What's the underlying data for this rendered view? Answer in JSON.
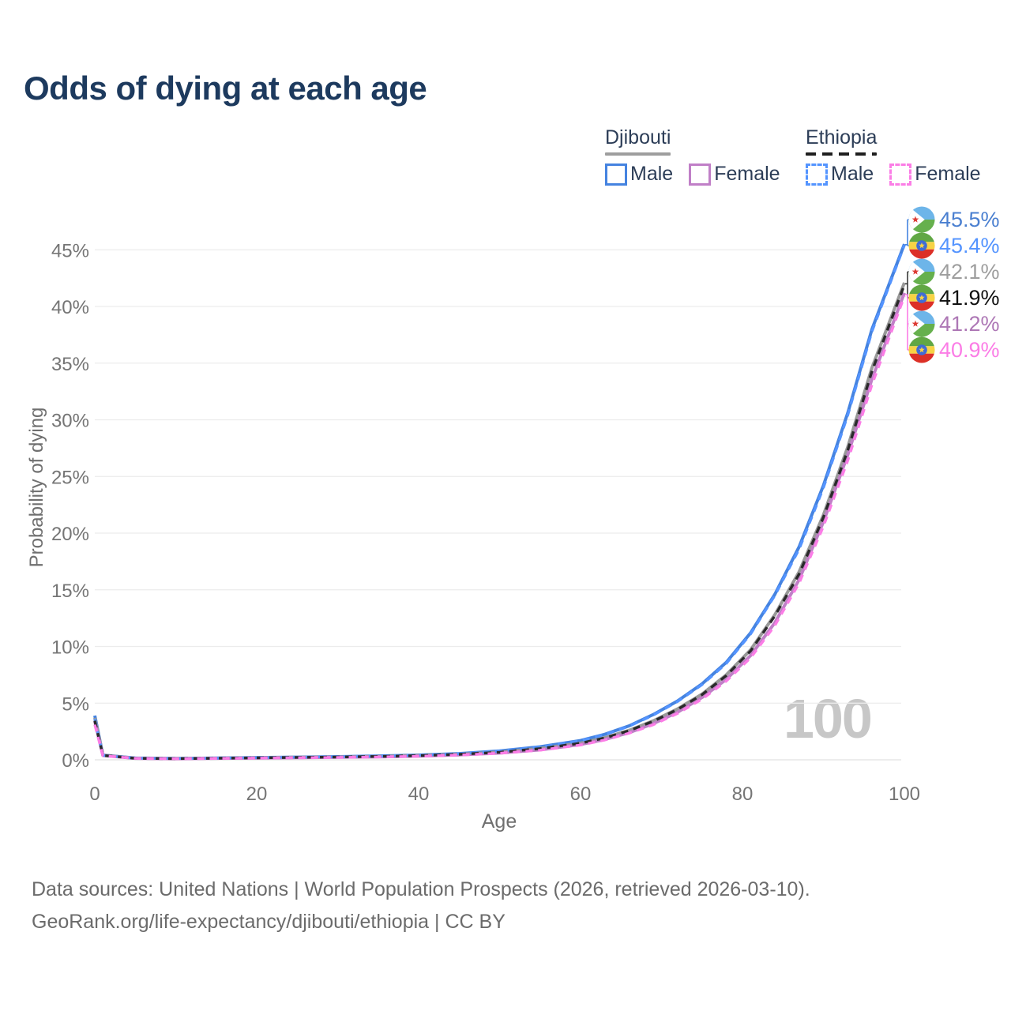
{
  "title": "Odds of dying at each age",
  "watermark": "100",
  "legend": {
    "groups": [
      {
        "name": "Djibouti",
        "line_color": "#9e9e9e",
        "line_style": "solid",
        "items": [
          {
            "label": "Male",
            "series": "djibouti-male"
          },
          {
            "label": "Female",
            "series": "djibouti-female"
          }
        ]
      },
      {
        "name": "Ethiopia",
        "line_color": "#1f1f1f",
        "line_style": "dashed",
        "items": [
          {
            "label": "Male",
            "series": "ethiopia-male"
          },
          {
            "label": "Female",
            "series": "ethiopia-female"
          }
        ]
      }
    ]
  },
  "footer": {
    "line1": "Data sources: United Nations | World Population Prospects (2026, retrieved 2026-03-10).",
    "line2": "GeoRank.org/life-expectancy/djibouti/ethiopia | CC BY"
  },
  "chart_data": {
    "type": "line",
    "title": "Odds of dying at each age",
    "xlabel": "Age",
    "ylabel": "Probability of dying",
    "xlim": [
      0,
      100
    ],
    "ylim_percent": [
      0,
      47
    ],
    "grid": "horizontal",
    "legend_position": "top-right",
    "xticks": [
      0,
      20,
      40,
      60,
      80,
      100
    ],
    "yticks": [
      {
        "label": "0%",
        "value": 0
      },
      {
        "label": "5%",
        "value": 5
      },
      {
        "label": "10%",
        "value": 10
      },
      {
        "label": "15%",
        "value": 15
      },
      {
        "label": "20%",
        "value": 20
      },
      {
        "label": "25%",
        "value": 25
      },
      {
        "label": "30%",
        "value": 30
      },
      {
        "label": "35%",
        "value": 35
      },
      {
        "label": "40%",
        "value": 40
      },
      {
        "label": "45%",
        "value": 45
      }
    ],
    "x": [
      0,
      1,
      5,
      10,
      15,
      20,
      25,
      30,
      35,
      40,
      45,
      50,
      55,
      60,
      63,
      66,
      69,
      72,
      75,
      78,
      81,
      84,
      87,
      90,
      93,
      96,
      100
    ],
    "series": [
      {
        "id": "djibouti-male",
        "name": "Djibouti Male",
        "country": "djibouti",
        "sex": "male",
        "color": "#4583e0",
        "style": "solid",
        "values": [
          3.9,
          0.42,
          0.15,
          0.12,
          0.15,
          0.2,
          0.24,
          0.28,
          0.34,
          0.42,
          0.55,
          0.78,
          1.15,
          1.7,
          2.25,
          3.0,
          4.0,
          5.2,
          6.7,
          8.6,
          11.2,
          14.6,
          18.8,
          24.2,
          30.6,
          38.0,
          45.5
        ]
      },
      {
        "id": "djibouti-both",
        "name": "Djibouti Both sexes",
        "country": "djibouti",
        "sex": "both",
        "color": "#999999",
        "style": "solid",
        "values": [
          3.7,
          0.41,
          0.14,
          0.11,
          0.14,
          0.18,
          0.22,
          0.25,
          0.3,
          0.38,
          0.49,
          0.68,
          1.0,
          1.48,
          1.95,
          2.6,
          3.45,
          4.5,
          5.8,
          7.5,
          9.7,
          12.8,
          16.6,
          21.6,
          27.6,
          34.6,
          42.1
        ]
      },
      {
        "id": "djibouti-female",
        "name": "Djibouti Female",
        "country": "djibouti",
        "sex": "female",
        "color": "#c07fc7",
        "style": "solid",
        "values": [
          3.4,
          0.38,
          0.13,
          0.1,
          0.13,
          0.16,
          0.19,
          0.22,
          0.26,
          0.33,
          0.43,
          0.6,
          0.88,
          1.35,
          1.8,
          2.4,
          3.2,
          4.2,
          5.5,
          7.1,
          9.2,
          12.1,
          15.9,
          21.0,
          26.9,
          33.6,
          41.2
        ]
      },
      {
        "id": "ethiopia-male",
        "name": "Ethiopia Male",
        "country": "ethiopia",
        "sex": "male",
        "color": "#5494ff",
        "style": "dashed",
        "values": [
          3.6,
          0.4,
          0.14,
          0.115,
          0.145,
          0.195,
          0.235,
          0.275,
          0.33,
          0.41,
          0.54,
          0.77,
          1.13,
          1.68,
          2.22,
          2.96,
          3.95,
          5.15,
          6.63,
          8.5,
          11.1,
          14.5,
          18.6,
          24.0,
          30.4,
          37.8,
          45.4
        ]
      },
      {
        "id": "ethiopia-both",
        "name": "Ethiopia Both sexes",
        "country": "ethiopia",
        "sex": "both",
        "color": "#2a2a2a",
        "style": "dashed",
        "values": [
          3.45,
          0.39,
          0.135,
          0.107,
          0.137,
          0.177,
          0.215,
          0.247,
          0.297,
          0.37,
          0.485,
          0.67,
          0.99,
          1.46,
          1.93,
          2.57,
          3.41,
          4.45,
          5.74,
          7.43,
          9.6,
          12.7,
          16.4,
          21.4,
          27.3,
          34.3,
          41.9
        ]
      },
      {
        "id": "ethiopia-female",
        "name": "Ethiopia Female",
        "country": "ethiopia",
        "sex": "female",
        "color": "#fb7de6",
        "style": "dashed",
        "values": [
          3.1,
          0.36,
          0.125,
          0.095,
          0.12,
          0.15,
          0.18,
          0.21,
          0.25,
          0.315,
          0.415,
          0.58,
          0.85,
          1.3,
          1.75,
          2.35,
          3.1,
          4.1,
          5.35,
          6.95,
          9.0,
          11.85,
          15.6,
          20.6,
          26.4,
          33.1,
          40.9
        ]
      }
    ],
    "end_labels": [
      {
        "value": "45.5%",
        "country": "djibouti",
        "color": "#4a7fd0"
      },
      {
        "value": "45.4%",
        "country": "ethiopia",
        "color": "#5494ff"
      },
      {
        "value": "42.1%",
        "country": "djibouti",
        "color": "#9e9e9e"
      },
      {
        "value": "41.9%",
        "country": "ethiopia",
        "color": "#111111"
      },
      {
        "value": "41.2%",
        "country": "djibouti",
        "color": "#ad77b5"
      },
      {
        "value": "40.9%",
        "country": "ethiopia",
        "color": "#fb7de6"
      }
    ],
    "connectors": [
      {
        "color": "#4583e0"
      },
      {
        "color": "#3a3a3a"
      },
      {
        "color": "#fb7de6"
      }
    ]
  }
}
